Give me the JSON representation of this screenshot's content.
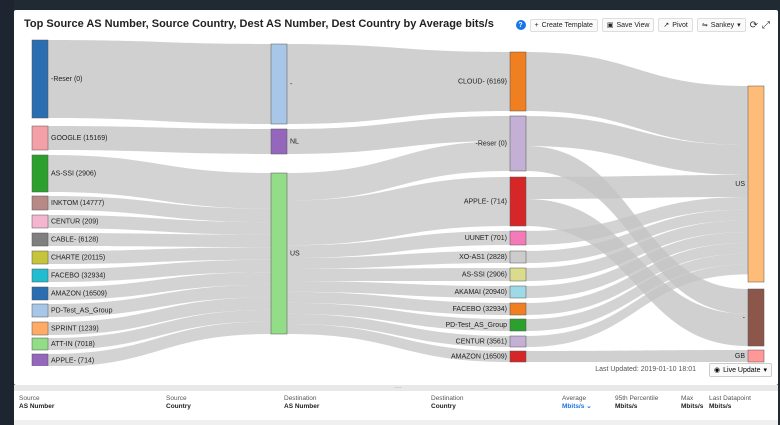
{
  "title": "Top Source AS Number, Source Country, Dest AS Number, Dest Country by Average bits/s",
  "toolbar": {
    "help": "?",
    "create_template": "Create Template",
    "save_view": "Save View",
    "pivot": "Pivot",
    "sankey": "Sankey"
  },
  "sankey": {
    "col1": [
      {
        "label": "-Reser (0)",
        "color": "#2a6db0"
      },
      {
        "label": "GOOGLE (15169)",
        "color": "#f4a0a8"
      },
      {
        "label": "AS-SSI (2906)",
        "color": "#2ca02c"
      },
      {
        "label": "INKTOM (14777)",
        "color": "#b88a85"
      },
      {
        "label": "CENTUR (209)",
        "color": "#f4b6cf"
      },
      {
        "label": "CABLE- (6128)",
        "color": "#7f7f7f"
      },
      {
        "label": "CHARTE (20115)",
        "color": "#c6c43a"
      },
      {
        "label": "FACEBO (32934)",
        "color": "#22bcd0"
      },
      {
        "label": "AMAZON (16509)",
        "color": "#2a6db0"
      },
      {
        "label": "PD-Test_AS_Group",
        "color": "#a8c6e8"
      },
      {
        "label": "SPRINT (1239)",
        "color": "#ffab66"
      },
      {
        "label": "ATT-IN (7018)",
        "color": "#93dd88"
      },
      {
        "label": "APPLE- (714)",
        "color": "#9467bd"
      }
    ],
    "col2": [
      {
        "label": "-",
        "color": "#a8c6e8"
      },
      {
        "label": "NL",
        "color": "#9467bd"
      },
      {
        "label": "US",
        "color": "#93dd88"
      }
    ],
    "col3": [
      {
        "label": "CLOUD- (6169)",
        "color": "#f07f22"
      },
      {
        "label": "-Reser (0)",
        "color": "#c5b0d5"
      },
      {
        "label": "APPLE- (714)",
        "color": "#d62728"
      },
      {
        "label": "UUNET (701)",
        "color": "#f47ab8"
      },
      {
        "label": "XO-AS1 (2828)",
        "color": "#cccccc"
      },
      {
        "label": "AS-SSI (2906)",
        "color": "#dbdb8d"
      },
      {
        "label": "AKAMAI (20940)",
        "color": "#9edae5"
      },
      {
        "label": "FACEBO (32934)",
        "color": "#f07f22"
      },
      {
        "label": "PD-Test_AS_Group",
        "color": "#2ca02c"
      },
      {
        "label": "CENTUR (3561)",
        "color": "#c5b0d5"
      },
      {
        "label": "AMAZON (16509)",
        "color": "#d62728"
      }
    ],
    "col4": [
      {
        "label": "US",
        "color": "#ffbb78"
      },
      {
        "label": "-",
        "color": "#8c564b"
      },
      {
        "label": "GB",
        "color": "#ff9896"
      }
    ]
  },
  "footer": {
    "last_updated": "Last Updated: 2019-01-10 18:01",
    "live_update": "Live Update"
  },
  "table": {
    "columns": [
      {
        "top": "Source",
        "bottom": "AS Number"
      },
      {
        "top": "Source",
        "bottom": "Country"
      },
      {
        "top": "Destination",
        "bottom": "AS Number"
      },
      {
        "top": "Destination",
        "bottom": "Country"
      },
      {
        "top": "Average",
        "bottom": "Mbits/s"
      },
      {
        "top": "95th Percentile",
        "bottom": "Mbits/s"
      },
      {
        "top": "Max",
        "bottom": "Mbits/s"
      },
      {
        "top": "Last Datapoint",
        "bottom": "Mbits/s"
      }
    ]
  },
  "divider_glyph": "....",
  "colors": {
    "link": "#c4c4c4",
    "accent": "#1a73e8"
  }
}
